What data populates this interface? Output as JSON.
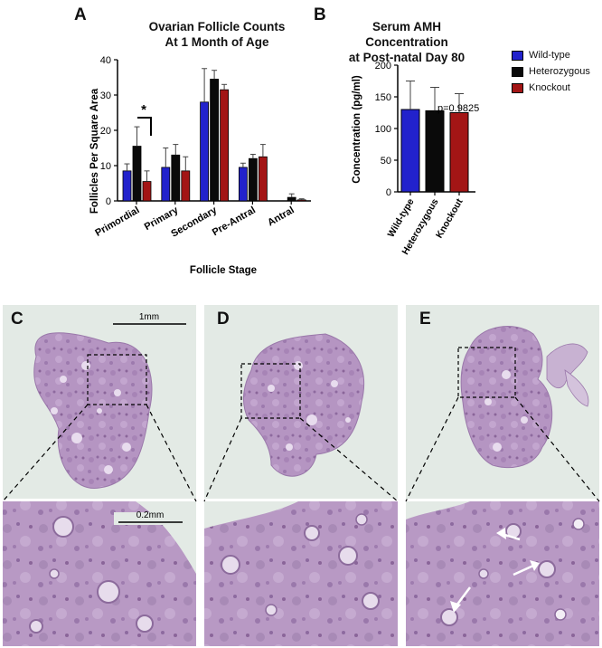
{
  "colors": {
    "wild_type": "#2222cc",
    "heterozygous": "#0a0a0a",
    "knockout": "#a31515",
    "tissue": "#b898c4",
    "tissue_dark": "#9b78aa",
    "background_slide": "#e2e9e4"
  },
  "panels": {
    "a": "A",
    "b": "B",
    "c": "C",
    "d": "D",
    "e": "E"
  },
  "legend": {
    "items": [
      {
        "label": "Wild-type",
        "color": "#2222cc"
      },
      {
        "label": "Heterozygous",
        "color": "#0a0a0a"
      },
      {
        "label": "Knockout",
        "color": "#a31515"
      }
    ]
  },
  "chart_data": [
    {
      "type": "bar",
      "title_line1": "Ovarian Follicle Counts",
      "title_line2": "At 1 Month of Age",
      "xlabel": "Follicle Stage",
      "ylabel": "Follicles Per Square Area",
      "ylim": [
        0,
        40
      ],
      "yticks": [
        0,
        10,
        20,
        30,
        40
      ],
      "categories": [
        "Primordial",
        "Primary",
        "Secondary",
        "Pre-Antral",
        "Antral"
      ],
      "series": [
        {
          "name": "Wild-type",
          "values": [
            8.5,
            9.5,
            28,
            9.5,
            0
          ],
          "errors": [
            2,
            5.5,
            9.5,
            1.2,
            0
          ]
        },
        {
          "name": "Heterozygous",
          "values": [
            15.5,
            13,
            34.5,
            12,
            1
          ],
          "errors": [
            5.5,
            3,
            2.5,
            1.2,
            1
          ]
        },
        {
          "name": "Knockout",
          "values": [
            5.5,
            8.5,
            31.5,
            12.5,
            0.3
          ],
          "errors": [
            3,
            4,
            1.5,
            3.5,
            0.3
          ]
        }
      ],
      "significance": "*",
      "grid": false
    },
    {
      "type": "bar",
      "title_line1": "Serum AMH Concentration",
      "title_line2": "at Post-natal Day 80",
      "ylabel": "Concentration (pg/ml)",
      "ylim": [
        0,
        200
      ],
      "yticks": [
        0,
        50,
        100,
        150,
        200
      ],
      "categories": [
        "Wild-type",
        "Heterozygous",
        "Knockout"
      ],
      "values": [
        130,
        128,
        125
      ],
      "errors": [
        45,
        37,
        30
      ],
      "annotation": "p=0.9825",
      "legend_position": "top-right",
      "grid": false
    }
  ],
  "micrographs": {
    "scale_1mm": "1mm",
    "scale_02mm": "0.2mm"
  }
}
